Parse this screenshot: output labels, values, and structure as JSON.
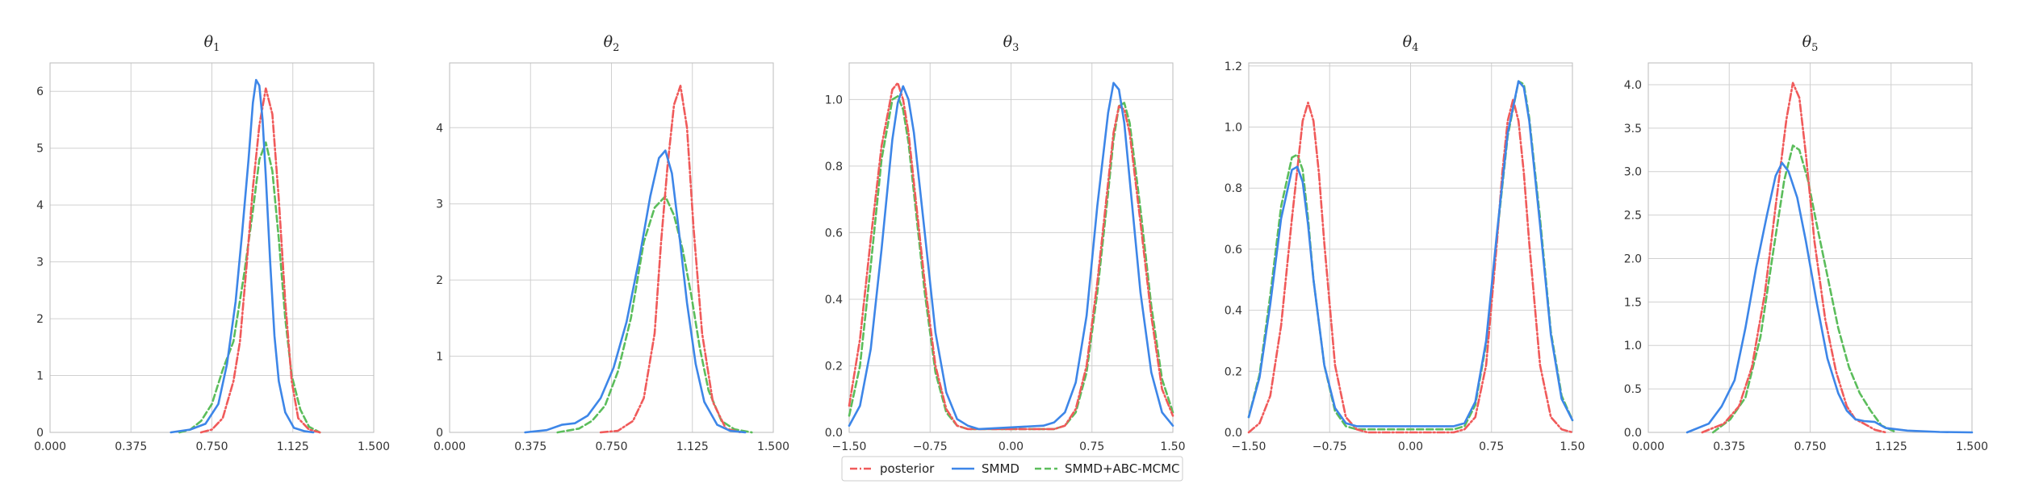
{
  "chart_data": [
    {
      "type": "line",
      "title": "θ1",
      "xlim": [
        0.0,
        1.5
      ],
      "ylim": [
        0,
        6.5
      ],
      "xticks": [
        0.0,
        0.375,
        0.75,
        1.125,
        1.5
      ],
      "xtick_labels": [
        "0.000",
        "0.375",
        "0.750",
        "1.125",
        "1.500"
      ],
      "yticks": [
        0,
        1,
        2,
        3,
        4,
        5,
        6
      ],
      "ytick_labels": [
        "0",
        "1",
        "2",
        "3",
        "4",
        "5",
        "6"
      ],
      "grid": true,
      "series": [
        {
          "name": "posterior",
          "key": "posterior",
          "x": [
            0.7,
            0.75,
            0.8,
            0.85,
            0.88,
            0.91,
            0.94,
            0.97,
            1.0,
            1.03,
            1.06,
            1.09,
            1.12,
            1.15,
            1.2,
            1.25
          ],
          "y": [
            0.0,
            0.05,
            0.25,
            0.9,
            1.6,
            2.9,
            4.3,
            5.4,
            6.05,
            5.6,
            4.1,
            2.3,
            0.9,
            0.25,
            0.05,
            0.0
          ]
        },
        {
          "name": "SMMD",
          "key": "smmd",
          "x": [
            0.56,
            0.65,
            0.72,
            0.78,
            0.82,
            0.86,
            0.89,
            0.92,
            0.94,
            0.955,
            0.97,
            0.985,
            1.0,
            1.02,
            1.04,
            1.06,
            1.09,
            1.13,
            1.18,
            1.22
          ],
          "y": [
            0.0,
            0.05,
            0.15,
            0.5,
            1.2,
            2.3,
            3.5,
            4.8,
            5.8,
            6.2,
            6.1,
            5.5,
            4.5,
            3.0,
            1.7,
            0.9,
            0.35,
            0.08,
            0.02,
            0.0
          ]
        },
        {
          "name": "SMMD+ABC-MCMC",
          "key": "abc",
          "x": [
            0.6,
            0.65,
            0.7,
            0.75,
            0.8,
            0.85,
            0.9,
            0.94,
            0.97,
            1.0,
            1.03,
            1.06,
            1.09,
            1.12,
            1.16,
            1.2,
            1.25
          ],
          "y": [
            0.0,
            0.05,
            0.2,
            0.5,
            1.1,
            1.6,
            2.8,
            3.9,
            4.8,
            5.1,
            4.6,
            3.4,
            2.0,
            1.0,
            0.4,
            0.1,
            0.0
          ]
        }
      ]
    },
    {
      "type": "line",
      "title": "θ2",
      "xlim": [
        0.0,
        1.5
      ],
      "ylim": [
        0,
        4.85
      ],
      "xticks": [
        0.0,
        0.375,
        0.75,
        1.125,
        1.5
      ],
      "xtick_labels": [
        "0.000",
        "0.375",
        "0.750",
        "1.125",
        "1.500"
      ],
      "yticks": [
        0,
        1,
        2,
        3,
        4
      ],
      "ytick_labels": [
        "0",
        "1",
        "2",
        "3",
        "4"
      ],
      "grid": true,
      "series": [
        {
          "name": "posterior",
          "key": "posterior",
          "x": [
            0.7,
            0.78,
            0.85,
            0.9,
            0.95,
            0.98,
            1.01,
            1.04,
            1.07,
            1.1,
            1.13,
            1.17,
            1.22,
            1.28,
            1.35
          ],
          "y": [
            0.0,
            0.02,
            0.15,
            0.45,
            1.3,
            2.5,
            3.5,
            4.3,
            4.55,
            4.0,
            2.7,
            1.3,
            0.4,
            0.05,
            0.0
          ]
        },
        {
          "name": "SMMD",
          "key": "smmd",
          "x": [
            0.35,
            0.45,
            0.52,
            0.58,
            0.64,
            0.7,
            0.76,
            0.82,
            0.88,
            0.93,
            0.97,
            1.0,
            1.03,
            1.06,
            1.1,
            1.14,
            1.18,
            1.24,
            1.3,
            1.37
          ],
          "y": [
            0.0,
            0.03,
            0.1,
            0.12,
            0.22,
            0.45,
            0.85,
            1.45,
            2.3,
            3.1,
            3.6,
            3.7,
            3.4,
            2.7,
            1.7,
            0.9,
            0.4,
            0.1,
            0.02,
            0.0
          ]
        },
        {
          "name": "SMMD+ABC-MCMC",
          "key": "abc",
          "x": [
            0.5,
            0.6,
            0.66,
            0.72,
            0.78,
            0.84,
            0.9,
            0.95,
            1.0,
            1.04,
            1.08,
            1.12,
            1.16,
            1.2,
            1.26,
            1.32,
            1.4
          ],
          "y": [
            0.0,
            0.05,
            0.15,
            0.35,
            0.8,
            1.5,
            2.5,
            2.95,
            3.1,
            2.85,
            2.4,
            1.8,
            1.1,
            0.55,
            0.15,
            0.04,
            0.0
          ]
        }
      ]
    },
    {
      "type": "line",
      "title": "θ3",
      "xlim": [
        -1.5,
        1.5
      ],
      "ylim": [
        0,
        1.11
      ],
      "xticks": [
        -1.5,
        -0.75,
        0.0,
        0.75,
        1.5
      ],
      "xtick_labels": [
        "−1.50",
        "−0.75",
        "0.00",
        "0.75",
        "1.50"
      ],
      "yticks": [
        0.0,
        0.2,
        0.4,
        0.6,
        0.8,
        1.0
      ],
      "ytick_labels": [
        "0.0",
        "0.2",
        "0.4",
        "0.6",
        "0.8",
        "1.0"
      ],
      "grid": true,
      "series": [
        {
          "name": "posterior",
          "key": "posterior",
          "x": [
            -1.5,
            -1.4,
            -1.3,
            -1.2,
            -1.1,
            -1.05,
            -1.0,
            -0.95,
            -0.9,
            -0.8,
            -0.7,
            -0.6,
            -0.5,
            -0.4,
            -0.3,
            0.0,
            0.3,
            0.4,
            0.5,
            0.6,
            0.7,
            0.8,
            0.9,
            0.95,
            1.0,
            1.05,
            1.1,
            1.2,
            1.3,
            1.4,
            1.5
          ],
          "y": [
            0.08,
            0.28,
            0.58,
            0.86,
            1.03,
            1.05,
            1.0,
            0.9,
            0.75,
            0.45,
            0.2,
            0.07,
            0.02,
            0.01,
            0.01,
            0.01,
            0.01,
            0.01,
            0.02,
            0.07,
            0.2,
            0.45,
            0.75,
            0.9,
            0.98,
            0.97,
            0.9,
            0.63,
            0.35,
            0.13,
            0.05
          ]
        },
        {
          "name": "SMMD",
          "key": "smmd",
          "x": [
            -1.5,
            -1.4,
            -1.3,
            -1.2,
            -1.1,
            -1.05,
            -1.0,
            -0.95,
            -0.9,
            -0.8,
            -0.7,
            -0.6,
            -0.5,
            -0.4,
            -0.3,
            0.0,
            0.3,
            0.4,
            0.5,
            0.6,
            0.7,
            0.8,
            0.9,
            0.95,
            1.0,
            1.05,
            1.1,
            1.2,
            1.3,
            1.4,
            1.5
          ],
          "y": [
            0.02,
            0.08,
            0.25,
            0.55,
            0.88,
            0.99,
            1.04,
            1.0,
            0.9,
            0.6,
            0.3,
            0.12,
            0.04,
            0.02,
            0.01,
            0.015,
            0.02,
            0.03,
            0.06,
            0.15,
            0.35,
            0.68,
            0.96,
            1.05,
            1.03,
            0.93,
            0.76,
            0.42,
            0.18,
            0.06,
            0.02
          ]
        },
        {
          "name": "SMMD+ABC-MCMC",
          "key": "abc",
          "x": [
            -1.5,
            -1.4,
            -1.3,
            -1.2,
            -1.1,
            -1.05,
            -1.0,
            -0.95,
            -0.9,
            -0.8,
            -0.7,
            -0.6,
            -0.5,
            -0.4,
            -0.3,
            0.0,
            0.3,
            0.4,
            0.5,
            0.6,
            0.7,
            0.8,
            0.9,
            0.95,
            1.0,
            1.05,
            1.1,
            1.2,
            1.3,
            1.4,
            1.5
          ],
          "y": [
            0.05,
            0.2,
            0.5,
            0.82,
            1.0,
            1.01,
            0.97,
            0.87,
            0.72,
            0.42,
            0.18,
            0.06,
            0.02,
            0.01,
            0.01,
            0.01,
            0.01,
            0.01,
            0.02,
            0.06,
            0.18,
            0.42,
            0.72,
            0.88,
            0.98,
            0.99,
            0.93,
            0.67,
            0.38,
            0.16,
            0.06
          ]
        }
      ]
    },
    {
      "type": "line",
      "title": "θ4",
      "xlim": [
        -1.5,
        1.5
      ],
      "ylim": [
        0,
        1.21
      ],
      "xticks": [
        -1.5,
        -0.75,
        0.0,
        0.75,
        1.5
      ],
      "xtick_labels": [
        "−1.50",
        "−0.75",
        "0.00",
        "0.75",
        "1.50"
      ],
      "yticks": [
        0.0,
        0.2,
        0.4,
        0.6,
        0.8,
        1.0,
        1.2
      ],
      "ytick_labels": [
        "0.0",
        "0.2",
        "0.4",
        "0.6",
        "0.8",
        "1.0",
        "1.2"
      ],
      "grid": true,
      "series": [
        {
          "name": "posterior",
          "key": "posterior",
          "x": [
            -1.5,
            -1.4,
            -1.3,
            -1.2,
            -1.1,
            -1.0,
            -0.95,
            -0.9,
            -0.85,
            -0.8,
            -0.7,
            -0.6,
            -0.5,
            -0.4,
            -0.3,
            0.0,
            0.3,
            0.4,
            0.5,
            0.6,
            0.7,
            0.8,
            0.85,
            0.9,
            0.95,
            1.0,
            1.05,
            1.1,
            1.2,
            1.3,
            1.4,
            1.5
          ],
          "y": [
            0.0,
            0.03,
            0.12,
            0.35,
            0.7,
            1.02,
            1.08,
            1.02,
            0.85,
            0.62,
            0.22,
            0.05,
            0.01,
            0.0,
            0.0,
            0.0,
            0.0,
            0.0,
            0.01,
            0.05,
            0.22,
            0.62,
            0.85,
            1.02,
            1.09,
            1.02,
            0.85,
            0.62,
            0.22,
            0.05,
            0.01,
            0.0
          ]
        },
        {
          "name": "SMMD",
          "key": "smmd",
          "x": [
            -1.5,
            -1.4,
            -1.3,
            -1.2,
            -1.1,
            -1.05,
            -1.0,
            -0.95,
            -0.9,
            -0.8,
            -0.7,
            -0.6,
            -0.5,
            -0.4,
            -0.3,
            0.0,
            0.3,
            0.4,
            0.5,
            0.6,
            0.7,
            0.8,
            0.9,
            1.0,
            1.05,
            1.1,
            1.2,
            1.3,
            1.4,
            1.5
          ],
          "y": [
            0.05,
            0.18,
            0.42,
            0.7,
            0.86,
            0.87,
            0.82,
            0.68,
            0.5,
            0.22,
            0.08,
            0.03,
            0.02,
            0.02,
            0.02,
            0.02,
            0.02,
            0.02,
            0.03,
            0.1,
            0.3,
            0.65,
            0.98,
            1.15,
            1.13,
            1.02,
            0.68,
            0.32,
            0.11,
            0.04
          ]
        },
        {
          "name": "SMMD+ABC-MCMC",
          "key": "abc",
          "x": [
            -1.5,
            -1.4,
            -1.3,
            -1.2,
            -1.1,
            -1.05,
            -1.0,
            -0.95,
            -0.9,
            -0.8,
            -0.7,
            -0.6,
            -0.5,
            -0.4,
            -0.3,
            0.0,
            0.3,
            0.4,
            0.5,
            0.6,
            0.7,
            0.8,
            0.9,
            1.0,
            1.05,
            1.1,
            1.2,
            1.3,
            1.4,
            1.5
          ],
          "y": [
            0.05,
            0.19,
            0.45,
            0.74,
            0.9,
            0.91,
            0.86,
            0.7,
            0.5,
            0.22,
            0.07,
            0.02,
            0.01,
            0.01,
            0.01,
            0.01,
            0.01,
            0.01,
            0.02,
            0.09,
            0.29,
            0.64,
            0.97,
            1.15,
            1.14,
            1.03,
            0.7,
            0.33,
            0.12,
            0.04
          ]
        }
      ]
    },
    {
      "type": "line",
      "title": "θ5",
      "xlim": [
        0.0,
        1.5
      ],
      "ylim": [
        0,
        4.25
      ],
      "xticks": [
        0.0,
        0.375,
        0.75,
        1.125,
        1.5
      ],
      "xtick_labels": [
        "0.000",
        "0.375",
        "0.750",
        "1.125",
        "1.500"
      ],
      "yticks": [
        0.0,
        0.5,
        1.0,
        1.5,
        2.0,
        2.5,
        3.0,
        3.5,
        4.0
      ],
      "ytick_labels": [
        "0.0",
        "0.5",
        "1.0",
        "1.5",
        "2.0",
        "2.5",
        "3.0",
        "3.5",
        "4.0"
      ],
      "grid": true,
      "series": [
        {
          "name": "posterior",
          "key": "posterior",
          "x": [
            0.25,
            0.35,
            0.42,
            0.48,
            0.54,
            0.6,
            0.64,
            0.67,
            0.7,
            0.73,
            0.77,
            0.82,
            0.87,
            0.92,
            0.96,
            1.0,
            1.05,
            1.1
          ],
          "y": [
            0.0,
            0.1,
            0.3,
            0.75,
            1.6,
            2.8,
            3.6,
            4.02,
            3.85,
            3.2,
            2.2,
            1.3,
            0.7,
            0.3,
            0.15,
            0.1,
            0.03,
            0.0
          ]
        },
        {
          "name": "SMMD",
          "key": "smmd",
          "x": [
            0.18,
            0.28,
            0.34,
            0.4,
            0.45,
            0.5,
            0.55,
            0.59,
            0.62,
            0.65,
            0.69,
            0.73,
            0.78,
            0.83,
            0.88,
            0.92,
            0.96,
            1.0,
            1.05,
            1.1,
            1.2,
            1.35,
            1.5
          ],
          "y": [
            0.0,
            0.1,
            0.3,
            0.6,
            1.2,
            1.9,
            2.5,
            2.95,
            3.1,
            3.0,
            2.7,
            2.2,
            1.5,
            0.85,
            0.45,
            0.25,
            0.15,
            0.13,
            0.12,
            0.05,
            0.02,
            0.005,
            0.0
          ]
        },
        {
          "name": "SMMD+ABC-MCMC",
          "key": "abc",
          "x": [
            0.3,
            0.38,
            0.45,
            0.52,
            0.58,
            0.63,
            0.67,
            0.7,
            0.74,
            0.78,
            0.83,
            0.88,
            0.93,
            0.98,
            1.03,
            1.08,
            1.15
          ],
          "y": [
            0.0,
            0.15,
            0.4,
            1.1,
            2.1,
            2.9,
            3.3,
            3.25,
            2.9,
            2.4,
            1.8,
            1.2,
            0.75,
            0.45,
            0.25,
            0.08,
            0.0
          ]
        }
      ]
    }
  ],
  "legend": {
    "placement": "bottom-center",
    "items": [
      {
        "key": "posterior",
        "label": "posterior"
      },
      {
        "key": "smmd",
        "label": "SMMD"
      },
      {
        "key": "abc",
        "label": "SMMD+ABC-MCMC"
      }
    ]
  },
  "colors": {
    "posterior": "#f05a5a",
    "smmd": "#3d86e8",
    "abc": "#5bbd5b",
    "grid": "#d0d0d0",
    "axis": "#bbbbbb"
  }
}
